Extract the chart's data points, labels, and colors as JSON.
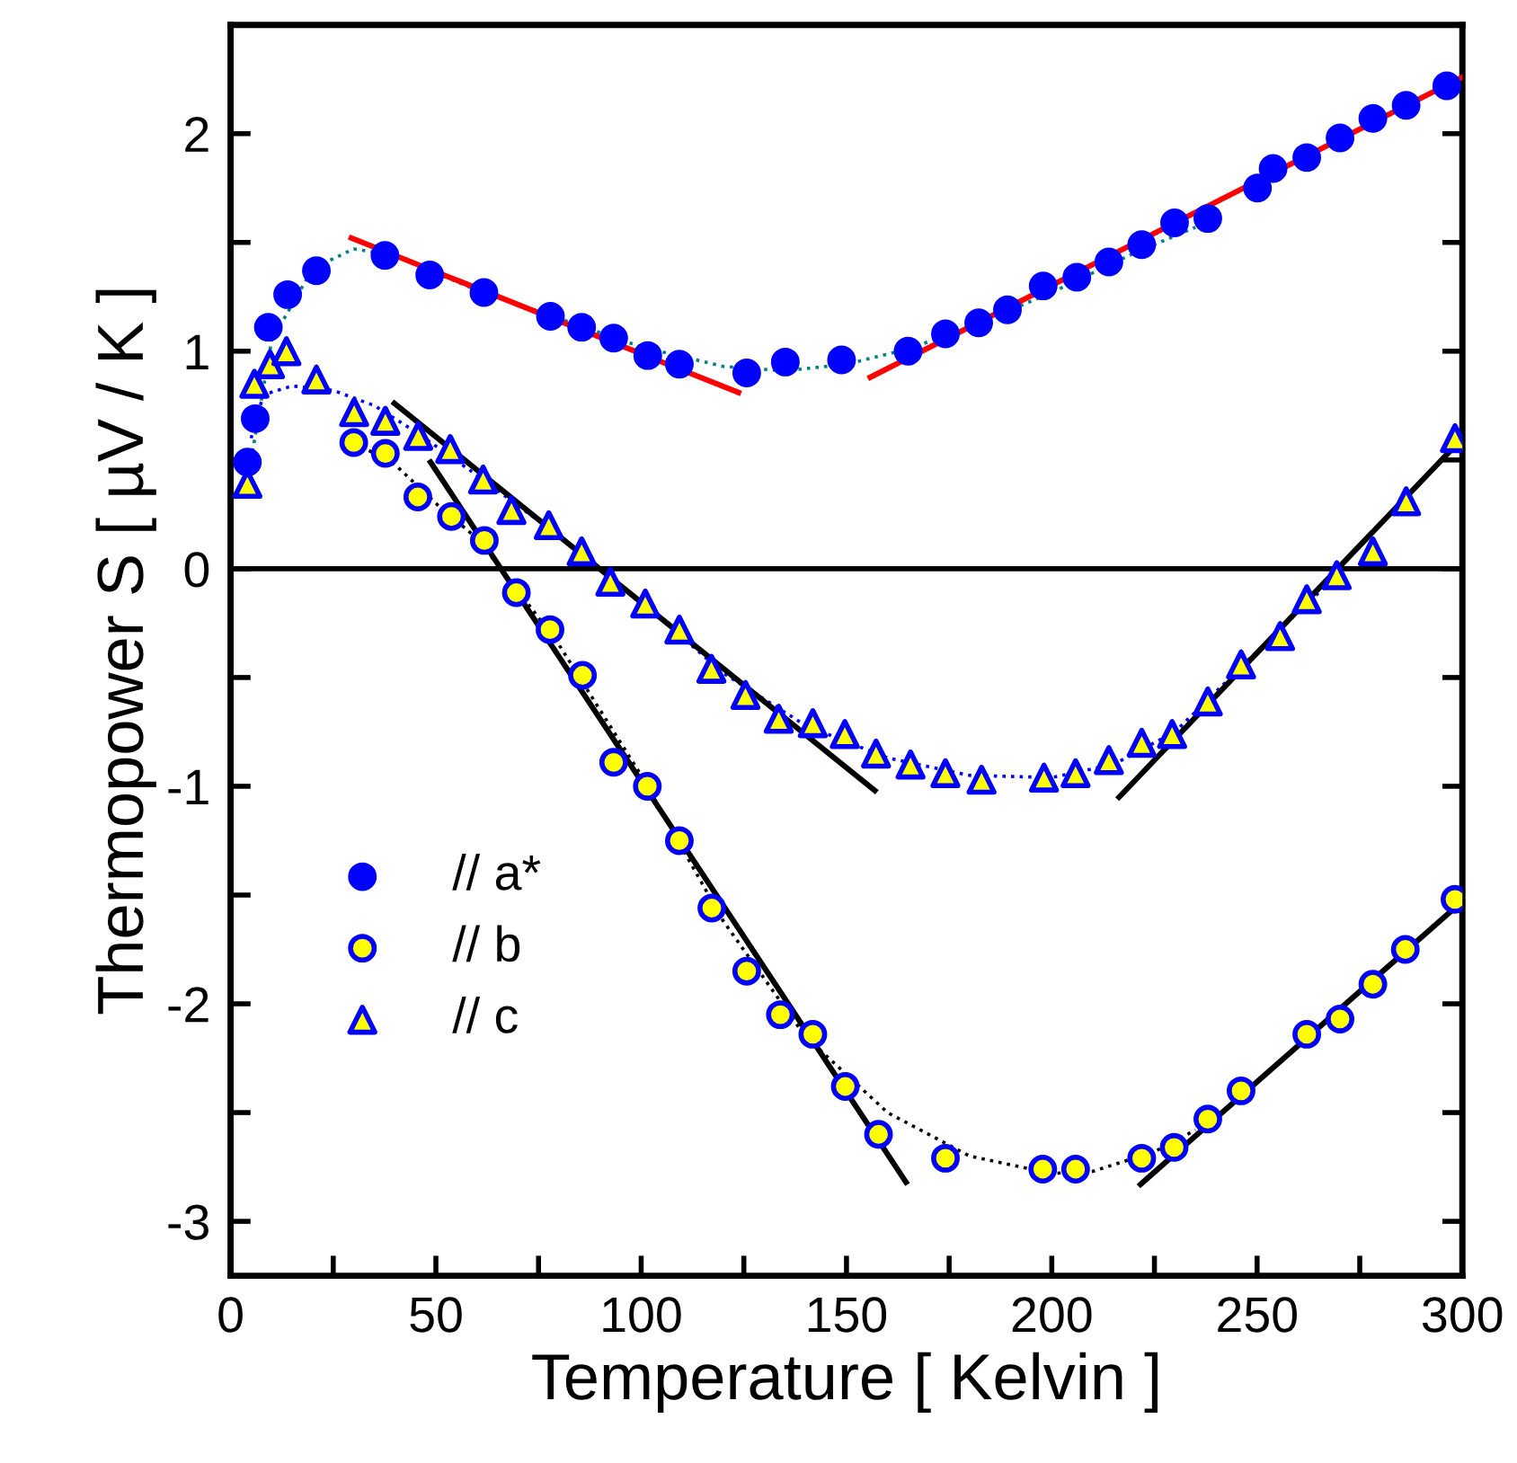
{
  "chart_data": {
    "type": "scatter",
    "xlabel": "Temperature [ Kelvin ]",
    "ylabel": "Thermopower S [ µV / K ]",
    "xlim": [
      0,
      300
    ],
    "ylim": [
      -3.25,
      2.5
    ],
    "xticks": [
      0,
      {
        "value": 25,
        "label": null
      },
      50,
      {
        "value": 75,
        "label": null
      },
      100,
      {
        "value": 125,
        "label": null
      },
      150,
      {
        "value": 175,
        "label": null
      },
      200,
      {
        "value": 225,
        "label": null
      },
      250,
      {
        "value": 275,
        "label": null
      },
      300
    ],
    "yticks": [
      -3,
      {
        "value": -2.5,
        "label": null
      },
      -2,
      {
        "value": -1.5,
        "label": null
      },
      -1,
      {
        "value": -0.5,
        "label": null
      },
      0,
      {
        "value": 0.5,
        "label": null
      },
      1,
      {
        "value": 1.5,
        "label": null
      },
      2
    ],
    "grid": false,
    "legend": "bottom left",
    "ref_lines": [
      {
        "axis": "y",
        "value": 0,
        "color": "#000000",
        "line_style": "solid"
      }
    ],
    "series": [
      {
        "name": "// a*",
        "marker": "circle",
        "color": "#0000ff",
        "x": [
          4.1,
          6.0,
          9.2,
          13.9,
          20.9,
          37.6,
          48.5,
          61.7,
          77.9,
          85.5,
          93.3,
          101.6,
          109.3,
          125.7,
          135.1,
          148.8,
          165.0,
          174.1,
          182.2,
          189.2,
          197.9,
          206.1,
          213.9,
          221.9,
          229.9,
          238.0,
          250.1,
          253.9,
          262.1,
          270.2,
          278.2,
          286.3,
          296.2
        ],
        "values": [
          0.49,
          0.69,
          1.11,
          1.26,
          1.37,
          1.44,
          1.35,
          1.27,
          1.16,
          1.11,
          1.06,
          0.98,
          0.94,
          0.9,
          0.95,
          0.96,
          1.0,
          1.08,
          1.13,
          1.19,
          1.3,
          1.34,
          1.41,
          1.49,
          1.59,
          1.61,
          1.75,
          1.84,
          1.89,
          1.98,
          2.07,
          2.13,
          2.22
        ]
      },
      {
        "name": "// b",
        "marker": "circle",
        "color": "#ffff00",
        "x": [
          30.0,
          37.7,
          45.6,
          53.8,
          61.8,
          69.6,
          77.8,
          85.7,
          93.3,
          101.5,
          109.3,
          117.2,
          125.7,
          133.9,
          141.8,
          149.7,
          157.8,
          174.1,
          197.8,
          205.8,
          221.9,
          229.8,
          238.0,
          246.1,
          262.1,
          270.2,
          278.2,
          286.1,
          298.2
        ],
        "values": [
          0.58,
          0.53,
          0.33,
          0.24,
          0.13,
          -0.11,
          -0.28,
          -0.49,
          -0.89,
          -1.0,
          -1.25,
          -1.56,
          -1.85,
          -2.05,
          -2.14,
          -2.38,
          -2.6,
          -2.71,
          -2.76,
          -2.76,
          -2.71,
          -2.66,
          -2.53,
          -2.4,
          -2.14,
          -2.07,
          -1.91,
          -1.75,
          -1.52
        ]
      },
      {
        "name": "// c",
        "marker": "triangle",
        "color": "#ffff00",
        "x": [
          4.1,
          5.8,
          9.6,
          13.6,
          20.9,
          30.1,
          37.7,
          45.7,
          53.5,
          61.5,
          68.4,
          77.5,
          85.5,
          92.5,
          101.0,
          109.3,
          117.1,
          125.4,
          133.5,
          141.8,
          149.6,
          157.2,
          165.6,
          174.1,
          182.9,
          198.1,
          205.8,
          213.9,
          221.9,
          229.3,
          238.0,
          246.1,
          255.6,
          262.1,
          269.4,
          278.2,
          286.3,
          298.2
        ],
        "values": [
          0.39,
          0.85,
          0.94,
          1.0,
          0.87,
          0.72,
          0.68,
          0.61,
          0.55,
          0.41,
          0.27,
          0.2,
          0.08,
          -0.06,
          -0.16,
          -0.28,
          -0.46,
          -0.58,
          -0.69,
          -0.71,
          -0.76,
          -0.85,
          -0.9,
          -0.94,
          -0.97,
          -0.96,
          -0.94,
          -0.88,
          -0.8,
          -0.76,
          -0.61,
          -0.44,
          -0.31,
          -0.14,
          -0.03,
          0.08,
          0.31,
          0.6
        ]
      },
      {
        "type": "line",
        "line_style": "dotted",
        "marker": "none",
        "color": "#008080",
        "x": [
          5,
          10,
          20,
          30,
          40,
          60,
          80,
          100,
          120,
          135,
          150,
          165,
          180,
          200,
          220,
          235
        ],
        "values": [
          0.5,
          1.05,
          1.38,
          1.47,
          1.44,
          1.28,
          1.15,
          1.02,
          0.93,
          0.91,
          0.94,
          1.01,
          1.11,
          1.27,
          1.45,
          1.57
        ]
      },
      {
        "type": "line",
        "line_style": "dotted",
        "marker": "none",
        "color": "#000000",
        "x": [
          30,
          40,
          50,
          60,
          70,
          80,
          100,
          120,
          140,
          160,
          180,
          200,
          210,
          225,
          235
        ],
        "values": [
          0.58,
          0.48,
          0.3,
          0.14,
          -0.1,
          -0.35,
          -0.95,
          -1.62,
          -2.15,
          -2.5,
          -2.7,
          -2.78,
          -2.77,
          -2.68,
          -2.58
        ]
      },
      {
        "type": "line",
        "line_style": "dotted",
        "marker": "none",
        "color": "#0000ff",
        "x": [
          5,
          8,
          15,
          25,
          35,
          45,
          60,
          80,
          100,
          120,
          140,
          160,
          180,
          200,
          215,
          230,
          250,
          270
        ],
        "values": [
          0.6,
          0.8,
          0.84,
          0.82,
          0.75,
          0.63,
          0.43,
          0.15,
          -0.15,
          -0.48,
          -0.72,
          -0.87,
          -0.95,
          -0.96,
          -0.9,
          -0.75,
          -0.38,
          -0.02
        ]
      },
      {
        "type": "line",
        "line_style": "solid",
        "marker": "none",
        "color": "#ff0000",
        "x": [
          29.4,
          123.7
        ],
        "values": [
          1.52,
          0.81
        ]
      },
      {
        "type": "line",
        "line_style": "solid",
        "marker": "none",
        "color": "#ff0000",
        "x": [
          155.8,
          300
        ],
        "values": [
          0.88,
          2.26
        ]
      },
      {
        "type": "line",
        "line_style": "solid",
        "marker": "none",
        "color": "#000000",
        "x": [
          39.9,
          156.9
        ],
        "values": [
          0.76,
          -1.02
        ]
      },
      {
        "type": "line",
        "line_style": "solid",
        "marker": "none",
        "color": "#000000",
        "x": [
          216.4,
          300
        ],
        "values": [
          -1.05,
          0.6
        ]
      },
      {
        "type": "line",
        "line_style": "solid",
        "marker": "none",
        "color": "#000000",
        "x": [
          48.7,
          164.5
        ],
        "values": [
          0.49,
          -2.82
        ]
      },
      {
        "type": "line",
        "line_style": "solid",
        "marker": "none",
        "color": "#000000",
        "x": [
          221.6,
          299.9
        ],
        "values": [
          -2.83,
          -1.53
        ]
      }
    ]
  }
}
